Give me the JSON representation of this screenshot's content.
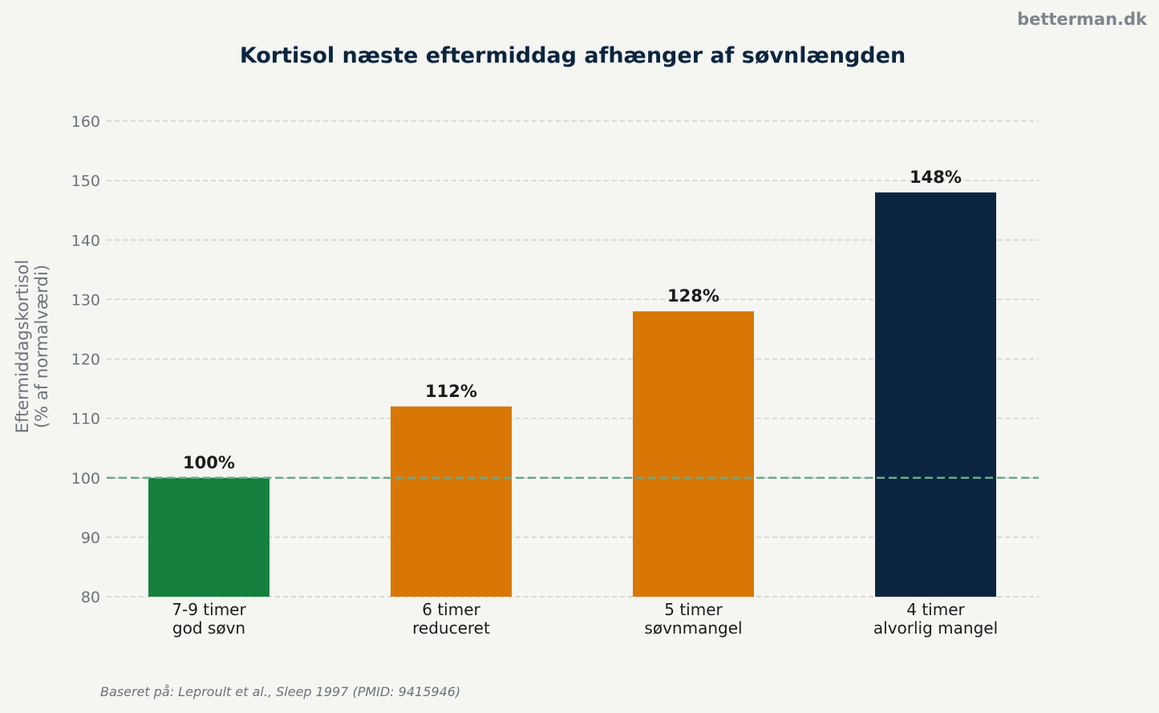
{
  "watermark": "betterman.dk",
  "source": "Baseret på: Leproult et al., Sleep 1997 (PMID: 9415946)",
  "chart_data": {
    "type": "bar",
    "title": "Kortisol næste eftermiddag afhænger af søvnlængden",
    "ylabel_lines": [
      "Eftermiddagskortisol",
      "(% af normalværdi)"
    ],
    "categories": [
      [
        "7-9 timer",
        "god søvn"
      ],
      [
        "6 timer",
        "reduceret"
      ],
      [
        "5 timer",
        "søvnmangel"
      ],
      [
        "4 timer",
        "alvorlig mangel"
      ]
    ],
    "values": [
      100,
      112,
      128,
      148
    ],
    "value_labels": [
      "100%",
      "112%",
      "128%",
      "148%"
    ],
    "colors": [
      "#15803d",
      "#d97706",
      "#d97706",
      "#0b2540"
    ],
    "ylim": [
      80,
      160
    ],
    "yticks": [
      80,
      90,
      100,
      110,
      120,
      130,
      140,
      150,
      160
    ],
    "reference_line": {
      "value": 100,
      "color": "#6aaa8a"
    },
    "grid": true,
    "grid_color": "#c8c8c8"
  }
}
